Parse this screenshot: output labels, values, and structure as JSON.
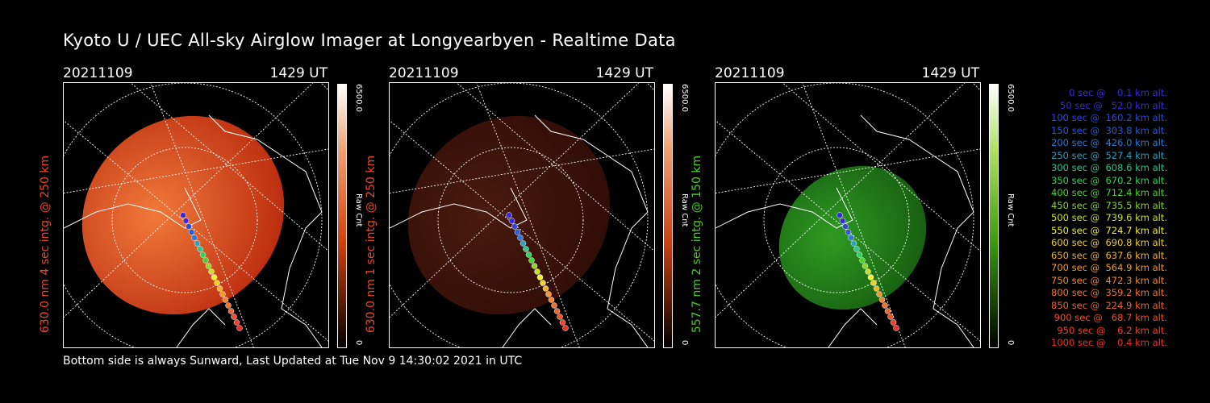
{
  "title": "Kyoto U / UEC All-sky Airglow Imager at Longyearbyen - Realtime Data",
  "footer": "Bottom side is always Sunward, Last Updated at Tue Nov  9 14:30:02 2021 in UTC",
  "panels": [
    {
      "date": "20211109",
      "time": "1429 UT",
      "label": "630.0 nm 4 sec intg. @ 250 km",
      "label_color": "#e8482c",
      "cbar_max": "6500.0",
      "cbar_unit": "Raw Cnt",
      "cbar_min": "0",
      "palette": "red",
      "brightness": 0.75
    },
    {
      "date": "20211109",
      "time": "1429 UT",
      "label": "630.0 nm 1 sec intg. @ 250 km",
      "label_color": "#e8482c",
      "cbar_max": "6500.0",
      "cbar_unit": "Raw Cnt",
      "cbar_min": "0",
      "palette": "red",
      "brightness": 0.2
    },
    {
      "date": "20211109",
      "time": "1429 UT",
      "label": "557.7 nm 2 sec intg. @ 150 km",
      "label_color": "#4ccd2a",
      "cbar_max": "6500.0",
      "cbar_unit": "Raw Cnt",
      "cbar_min": "0",
      "palette": "green",
      "brightness": 0.6
    }
  ],
  "legend": [
    {
      "text": "   0 sec @    0.1 km alt.",
      "color": "#3b2bd6"
    },
    {
      "text": "  50 sec @   52.0 km alt.",
      "color": "#3b2bd6"
    },
    {
      "text": " 100 sec @  160.2 km alt.",
      "color": "#2b4ad6"
    },
    {
      "text": " 150 sec @  303.8 km alt.",
      "color": "#2b5ad6"
    },
    {
      "text": " 200 sec @  426.0 km alt.",
      "color": "#2b7ad6"
    },
    {
      "text": " 250 sec @  527.4 km alt.",
      "color": "#2ba0c0"
    },
    {
      "text": " 300 sec @  608.6 km alt.",
      "color": "#2bc48a"
    },
    {
      "text": " 350 sec @  670.2 km alt.",
      "color": "#2bd45a"
    },
    {
      "text": " 400 sec @  712.4 km alt.",
      "color": "#4ad42b"
    },
    {
      "text": " 450 sec @  735.5 km alt.",
      "color": "#8ad42b"
    },
    {
      "text": " 500 sec @  739.6 km alt.",
      "color": "#c4e02b"
    },
    {
      "text": " 550 sec @  724.7 km alt.",
      "color": "#f0f02b"
    },
    {
      "text": " 600 sec @  690.8 km alt.",
      "color": "#f0d02b"
    },
    {
      "text": " 650 sec @  637.6 km alt.",
      "color": "#f0b42b"
    },
    {
      "text": " 700 sec @  564.9 km alt.",
      "color": "#f09a2b"
    },
    {
      "text": " 750 sec @  472.3 km alt.",
      "color": "#f0862b"
    },
    {
      "text": " 800 sec @  359.2 km alt.",
      "color": "#f0742b"
    },
    {
      "text": " 850 sec @  224.9 km alt.",
      "color": "#f0642b"
    },
    {
      "text": " 900 sec @   68.7 km alt.",
      "color": "#f0502b"
    },
    {
      "text": " 950 sec @    6.2 km alt.",
      "color": "#f0402b"
    },
    {
      "text": "1000 sec @    0.4 km alt.",
      "color": "#f0302b"
    }
  ]
}
